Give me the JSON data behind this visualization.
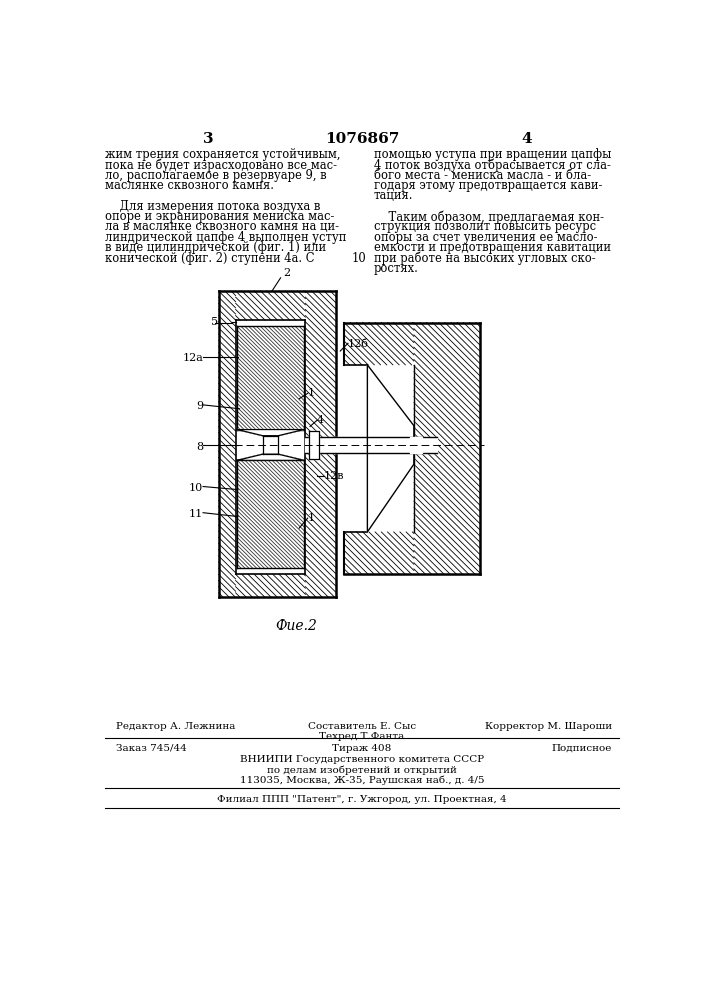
{
  "page_number_left": "3",
  "patent_number": "1076867",
  "page_number_right": "4",
  "text_left": "жим трения сохраняется устойчивым,\nпока не будет израсходовано все мас-\nло, располагаемое в резервуаре 9, в\nмаслянке сквозного камня.",
  "text_left2": "    Для измерения потока воздуха в\nопоре и экранирования мениска мас-\nла в маслянке сквозного камня на ци-\nлиндрической цапфе 4 выполнен уступ\nв виде цилиндрической (фиг. 1) или\nконической (фиг. 2) ступени 4а. С",
  "line_number_10": "10",
  "text_right": "помощью уступа при вращении цапфы\n4 поток воздуха отбрасывается от сла-\nбого места - мениска масла - и бла-\nгодаря этому предотвращается кави-\nтация.",
  "text_right2": "    Таким образом, предлагаемая кон-\nструкция позволит повысить ресурс\nопоры за счет увеличения ее масло-\nемкости и предотвращения кавитации\nпри работе на высоких угловых ско-\nростях.",
  "fig_caption": "Фие.2",
  "footer_line1_left": "Редактор А. Лежнина",
  "footer_line1_center": "Составитель Е. Сыс",
  "footer_line1_right": "Корректор М. Шароши",
  "footer_line2_center": "Техред Т.Фанта",
  "footer_line3_left": "Заказ 745/44",
  "footer_line3_center": "Тираж 408",
  "footer_line3_right": "Подписное",
  "footer_line4": "ВНИИПИ Государственного комитета СССР",
  "footer_line5": "по делам изобретений и открытий",
  "footer_line6": "113035, Москва, Ж-35, Раушская наб., д. 4/5",
  "footer_line7": "Филиал ППП \"Патент\", г. Ужгород, ул. Проектная, 4",
  "bg_color": "#ffffff",
  "text_color": "#000000"
}
